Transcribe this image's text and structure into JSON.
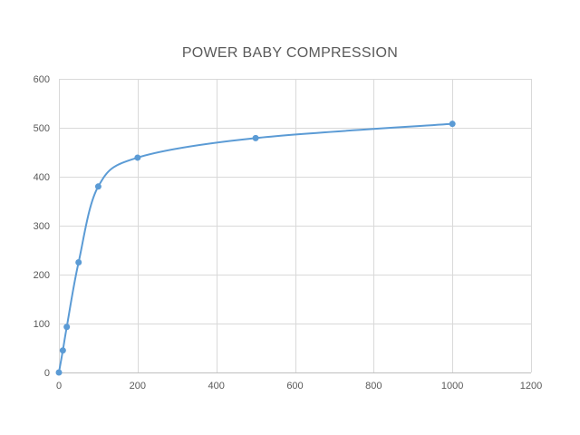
{
  "chart_data": {
    "type": "scatter",
    "title": "POWER BABY COMPRESSION",
    "xlabel": "",
    "ylabel": "",
    "xlim": [
      0,
      1200
    ],
    "ylim": [
      0,
      600
    ],
    "x_ticks": [
      0,
      200,
      400,
      600,
      800,
      1000,
      1200
    ],
    "y_ticks": [
      0,
      100,
      200,
      300,
      400,
      500,
      600
    ],
    "grid": true,
    "smooth_line": true,
    "legend": "none",
    "series": [
      {
        "color": "#5b9bd5",
        "points": [
          {
            "x": 0,
            "y": 0
          },
          {
            "x": 10,
            "y": 45
          },
          {
            "x": 20,
            "y": 93
          },
          {
            "x": 50,
            "y": 225
          },
          {
            "x": 100,
            "y": 380
          },
          {
            "x": 200,
            "y": 439
          },
          {
            "x": 500,
            "y": 479
          },
          {
            "x": 1000,
            "y": 508
          }
        ]
      }
    ]
  }
}
